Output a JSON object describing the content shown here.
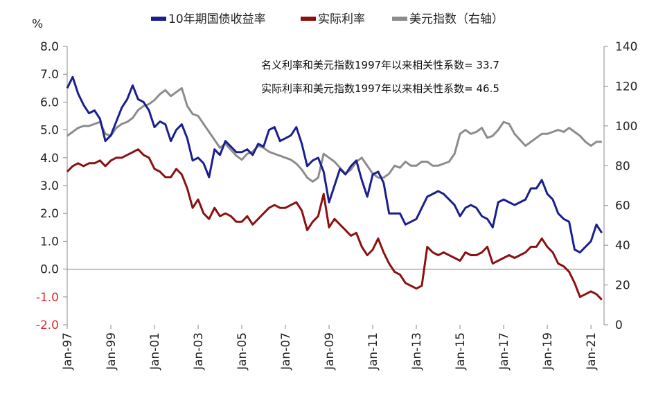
{
  "chart_data": {
    "type": "line",
    "y_unit_label": "%",
    "legend": [
      "10年期国债收益率",
      "实际利率",
      "美元指数（右轴）"
    ],
    "annotations": [
      "名义利率和美元指数1997年以来相关性系数= 33.7",
      "实际利率和美元指数1997年以来相关性系数= 46.5"
    ],
    "y_left": {
      "range": [
        -2.0,
        8.0
      ],
      "ticks": [
        "8.0",
        "7.0",
        "6.0",
        "5.0",
        "4.0",
        "3.0",
        "2.0",
        "1.0",
        "0.0",
        "-1.0",
        "-2.0"
      ]
    },
    "y_right": {
      "range": [
        0,
        140
      ],
      "ticks": [
        "140",
        "120",
        "100",
        "80",
        "60",
        "40",
        "20",
        "0"
      ]
    },
    "x": {
      "range": [
        1997.0,
        2021.6
      ],
      "ticks": [
        "Jan-97",
        "Jan-99",
        "Jan-01",
        "Jan-03",
        "Jan-05",
        "Jan-07",
        "Jan-09",
        "Jan-11",
        "Jan-13",
        "Jan-15",
        "Jan-17",
        "Jan-19",
        "Jan-21"
      ]
    },
    "colors": {
      "nominal": "#1a1f8f",
      "real": "#8b1010",
      "dollar": "#8c8c8c",
      "negative_tick": "#e0252a"
    },
    "series": [
      {
        "name": "10年期国债收益率",
        "axis": "left",
        "x": [
          1997.0,
          1997.25,
          1997.5,
          1997.75,
          1998.0,
          1998.25,
          1998.5,
          1998.75,
          1999.0,
          1999.25,
          1999.5,
          1999.75,
          2000.0,
          2000.25,
          2000.5,
          2000.75,
          2001.0,
          2001.25,
          2001.5,
          2001.75,
          2002.0,
          2002.25,
          2002.5,
          2002.75,
          2003.0,
          2003.25,
          2003.5,
          2003.75,
          2004.0,
          2004.25,
          2004.5,
          2004.75,
          2005.0,
          2005.25,
          2005.5,
          2005.75,
          2006.0,
          2006.25,
          2006.5,
          2006.75,
          2007.0,
          2007.25,
          2007.5,
          2007.75,
          2008.0,
          2008.25,
          2008.5,
          2008.75,
          2009.0,
          2009.25,
          2009.5,
          2009.75,
          2010.0,
          2010.25,
          2010.5,
          2010.75,
          2011.0,
          2011.25,
          2011.5,
          2011.75,
          2012.0,
          2012.25,
          2012.5,
          2012.75,
          2013.0,
          2013.25,
          2013.5,
          2013.75,
          2014.0,
          2014.25,
          2014.5,
          2014.75,
          2015.0,
          2015.25,
          2015.5,
          2015.75,
          2016.0,
          2016.25,
          2016.5,
          2016.75,
          2017.0,
          2017.25,
          2017.5,
          2017.75,
          2018.0,
          2018.25,
          2018.5,
          2018.75,
          2019.0,
          2019.25,
          2019.5,
          2019.75,
          2020.0,
          2020.25,
          2020.5,
          2020.75,
          2021.0,
          2021.25,
          2021.5
        ],
        "values": [
          6.5,
          6.9,
          6.3,
          5.9,
          5.6,
          5.7,
          5.4,
          4.6,
          4.8,
          5.3,
          5.8,
          6.1,
          6.6,
          6.1,
          6.0,
          5.7,
          5.1,
          5.3,
          5.2,
          4.6,
          5.0,
          5.2,
          4.7,
          3.9,
          4.0,
          3.8,
          3.3,
          4.3,
          4.1,
          4.6,
          4.4,
          4.2,
          4.2,
          4.3,
          4.1,
          4.5,
          4.4,
          5.0,
          5.1,
          4.6,
          4.7,
          4.8,
          5.1,
          4.5,
          3.7,
          3.9,
          4.0,
          3.5,
          2.4,
          3.0,
          3.6,
          3.4,
          3.7,
          3.9,
          3.2,
          2.6,
          3.4,
          3.5,
          3.1,
          2.0,
          2.0,
          2.0,
          1.6,
          1.7,
          1.8,
          2.2,
          2.6,
          2.7,
          2.8,
          2.7,
          2.5,
          2.3,
          1.9,
          2.2,
          2.3,
          2.2,
          1.9,
          1.8,
          1.5,
          2.4,
          2.5,
          2.4,
          2.3,
          2.4,
          2.5,
          2.9,
          2.9,
          3.2,
          2.7,
          2.5,
          2.0,
          1.8,
          1.7,
          0.7,
          0.6,
          0.8,
          1.0,
          1.6,
          1.3
        ]
      },
      {
        "name": "实际利率",
        "axis": "left",
        "x": [
          1997.0,
          1997.25,
          1997.5,
          1997.75,
          1998.0,
          1998.25,
          1998.5,
          1998.75,
          1999.0,
          1999.25,
          1999.5,
          1999.75,
          2000.0,
          2000.25,
          2000.5,
          2000.75,
          2001.0,
          2001.25,
          2001.5,
          2001.75,
          2002.0,
          2002.25,
          2002.5,
          2002.75,
          2003.0,
          2003.25,
          2003.5,
          2003.75,
          2004.0,
          2004.25,
          2004.5,
          2004.75,
          2005.0,
          2005.25,
          2005.5,
          2005.75,
          2006.0,
          2006.25,
          2006.5,
          2006.75,
          2007.0,
          2007.25,
          2007.5,
          2007.75,
          2008.0,
          2008.25,
          2008.5,
          2008.75,
          2009.0,
          2009.25,
          2009.5,
          2009.75,
          2010.0,
          2010.25,
          2010.5,
          2010.75,
          2011.0,
          2011.25,
          2011.5,
          2011.75,
          2012.0,
          2012.25,
          2012.5,
          2012.75,
          2013.0,
          2013.25,
          2013.5,
          2013.75,
          2014.0,
          2014.25,
          2014.5,
          2014.75,
          2015.0,
          2015.25,
          2015.5,
          2015.75,
          2016.0,
          2016.25,
          2016.5,
          2016.75,
          2017.0,
          2017.25,
          2017.5,
          2017.75,
          2018.0,
          2018.25,
          2018.5,
          2018.75,
          2019.0,
          2019.25,
          2019.5,
          2019.75,
          2020.0,
          2020.25,
          2020.5,
          2020.75,
          2021.0,
          2021.25,
          2021.5
        ],
        "values": [
          3.5,
          3.7,
          3.8,
          3.7,
          3.8,
          3.8,
          3.9,
          3.7,
          3.9,
          4.0,
          4.0,
          4.1,
          4.2,
          4.3,
          4.1,
          4.0,
          3.6,
          3.5,
          3.3,
          3.3,
          3.6,
          3.4,
          2.9,
          2.2,
          2.5,
          2.0,
          1.8,
          2.2,
          1.9,
          2.0,
          1.9,
          1.7,
          1.7,
          1.9,
          1.6,
          1.8,
          2.0,
          2.2,
          2.3,
          2.2,
          2.2,
          2.3,
          2.4,
          2.1,
          1.4,
          1.7,
          1.9,
          2.7,
          1.5,
          1.8,
          1.6,
          1.4,
          1.2,
          1.3,
          0.8,
          0.5,
          0.7,
          1.1,
          0.6,
          0.2,
          -0.1,
          -0.2,
          -0.5,
          -0.6,
          -0.7,
          -0.6,
          0.8,
          0.6,
          0.5,
          0.6,
          0.5,
          0.4,
          0.3,
          0.6,
          0.5,
          0.5,
          0.6,
          0.8,
          0.2,
          0.3,
          0.4,
          0.5,
          0.4,
          0.5,
          0.6,
          0.8,
          0.8,
          1.1,
          0.8,
          0.6,
          0.2,
          0.1,
          -0.1,
          -0.5,
          -1.0,
          -0.9,
          -0.8,
          -0.9,
          -1.1
        ]
      },
      {
        "name": "美元指数（右轴）",
        "axis": "right",
        "x": [
          1997.0,
          1997.25,
          1997.5,
          1997.75,
          1998.0,
          1998.25,
          1998.5,
          1998.75,
          1999.0,
          1999.25,
          1999.5,
          1999.75,
          2000.0,
          2000.25,
          2000.5,
          2000.75,
          2001.0,
          2001.25,
          2001.5,
          2001.75,
          2002.0,
          2002.25,
          2002.5,
          2002.75,
          2003.0,
          2003.25,
          2003.5,
          2003.75,
          2004.0,
          2004.25,
          2004.5,
          2004.75,
          2005.0,
          2005.25,
          2005.5,
          2005.75,
          2006.0,
          2006.25,
          2006.5,
          2006.75,
          2007.0,
          2007.25,
          2007.5,
          2007.75,
          2008.0,
          2008.25,
          2008.5,
          2008.75,
          2009.0,
          2009.25,
          2009.5,
          2009.75,
          2010.0,
          2010.25,
          2010.5,
          2010.75,
          2011.0,
          2011.25,
          2011.5,
          2011.75,
          2012.0,
          2012.25,
          2012.5,
          2012.75,
          2013.0,
          2013.25,
          2013.5,
          2013.75,
          2014.0,
          2014.25,
          2014.5,
          2014.75,
          2015.0,
          2015.25,
          2015.5,
          2015.75,
          2016.0,
          2016.25,
          2016.5,
          2016.75,
          2017.0,
          2017.25,
          2017.5,
          2017.75,
          2018.0,
          2018.25,
          2018.5,
          2018.75,
          2019.0,
          2019.25,
          2019.5,
          2019.75,
          2020.0,
          2020.25,
          2020.5,
          2020.75,
          2021.0,
          2021.25,
          2021.5
        ],
        "values": [
          95,
          97,
          99,
          100,
          100,
          101,
          102,
          96,
          95,
          99,
          101,
          102,
          104,
          108,
          110,
          111,
          113,
          116,
          118,
          115,
          117,
          119,
          110,
          106,
          105,
          101,
          97,
          93,
          89,
          91,
          88,
          85,
          83,
          86,
          87,
          90,
          89,
          87,
          86,
          85,
          84,
          83,
          81,
          78,
          74,
          72,
          74,
          86,
          84,
          82,
          79,
          76,
          78,
          82,
          84,
          80,
          76,
          74,
          74,
          76,
          80,
          79,
          82,
          80,
          80,
          82,
          82,
          80,
          80,
          81,
          82,
          86,
          96,
          98,
          96,
          97,
          99,
          94,
          95,
          98,
          102,
          101,
          96,
          93,
          90,
          92,
          94,
          96,
          96,
          97,
          98,
          97,
          99,
          97,
          95,
          92,
          90,
          92,
          92
        ]
      }
    ]
  }
}
